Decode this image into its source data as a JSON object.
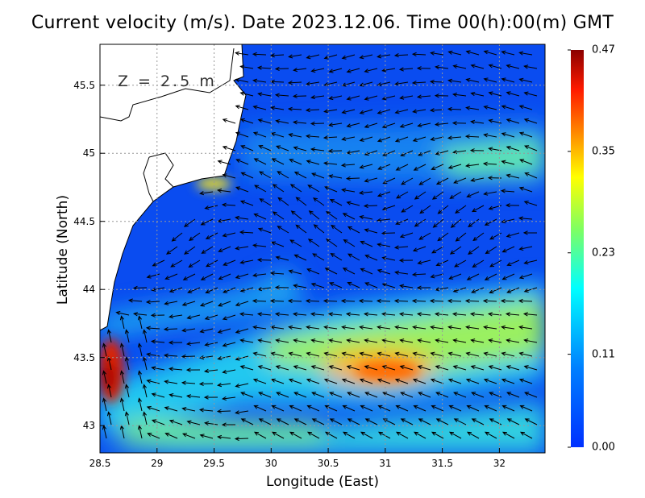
{
  "title": "Current velocity (m/s). Date 2023.12.06. Time 00(h):00(m) GMT",
  "depth_label": "Z = 2.5 m",
  "chart_data": {
    "type": "heatmap",
    "title": "Current velocity (m/s). Date 2023.12.06. Time 00(h):00(m) GMT",
    "xlabel": "Longitude (East)",
    "ylabel": "Latitude (North)",
    "xlim": [
      28.5,
      32.4
    ],
    "ylim": [
      42.8,
      45.8
    ],
    "xticks": [
      "28.5",
      "29",
      "29.5",
      "30",
      "30.5",
      "31",
      "31.5",
      "32"
    ],
    "xtick_values": [
      28.5,
      29,
      29.5,
      30,
      30.5,
      31,
      31.5,
      32
    ],
    "yticks": [
      "43",
      "43.5",
      "44",
      "44.5",
      "45",
      "45.5"
    ],
    "ytick_values": [
      43,
      43.5,
      44,
      44.5,
      45,
      45.5
    ],
    "grid": true,
    "colorbar": {
      "labels": [
        "0.47",
        "0.35",
        "0.23",
        "0.11",
        "0.00"
      ],
      "values": [
        0.47,
        0.35,
        0.23,
        0.11,
        0.0
      ],
      "colors": [
        "#8b0000",
        "#ff1a00",
        "#ff8000",
        "#ffff00",
        "#80ff60",
        "#00ffff",
        "#0080ff",
        "#0030ff"
      ]
    },
    "max_speed_region": {
      "lon": 28.6,
      "lat": 43.35,
      "speed": 0.45
    },
    "secondary_max_region": {
      "lon": 31.0,
      "lat": 43.4,
      "speed": 0.36
    }
  }
}
